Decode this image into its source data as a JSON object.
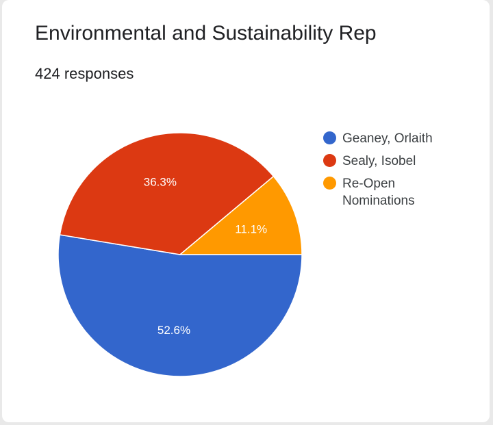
{
  "title": "Environmental and Sustainability Rep",
  "subtitle": "424 responses",
  "chart_data": {
    "type": "pie",
    "title": "Environmental and Sustainability Rep",
    "subtitle": "424 responses",
    "legend_position": "right",
    "slices": [
      {
        "label": "Geaney, Orlaith",
        "value": 52.6,
        "display": "52.6%",
        "color": "#3366cc"
      },
      {
        "label": "Sealy, Isobel",
        "value": 36.3,
        "display": "36.3%",
        "color": "#dc3912"
      },
      {
        "label": "Re-Open Nominations",
        "value": 11.1,
        "display": "11.1%",
        "color": "#ff9900"
      }
    ]
  }
}
